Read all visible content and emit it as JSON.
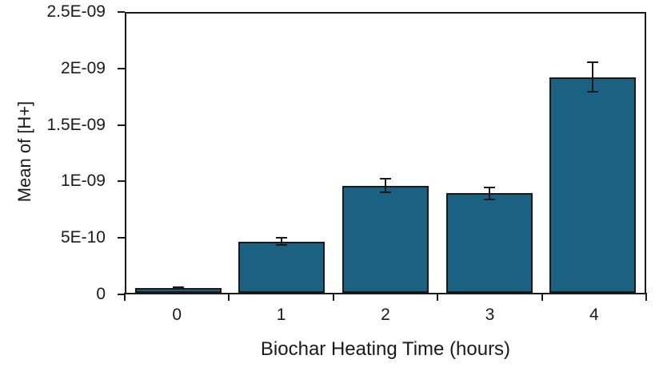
{
  "figure": {
    "background_color": "#ffffff",
    "text_color": "#1a1a1a",
    "axis_color": "#1a1a1a"
  },
  "chart_data": {
    "type": "bar",
    "title": "",
    "xlabel": "Biochar Heating Time (hours)",
    "ylabel": "Mean of [H+]",
    "categories": [
      "0",
      "1",
      "2",
      "3",
      "4"
    ],
    "values": [
      4e-11,
      4.6e-10,
      9.6e-10,
      8.9e-10,
      1.93e-09
    ],
    "errors": [
      1.2e-11,
      4e-11,
      7e-11,
      6e-11,
      1.4e-10
    ],
    "ylim": [
      0,
      2.5e-09
    ],
    "yticks": [
      {
        "value": 0,
        "label": "0"
      },
      {
        "value": 5e-10,
        "label": "5E-10"
      },
      {
        "value": 1e-09,
        "label": "1E-09"
      },
      {
        "value": 1.5e-09,
        "label": "1.5E-09"
      },
      {
        "value": 2e-09,
        "label": "2E-09"
      },
      {
        "value": 2.5e-09,
        "label": "2.5E-09"
      }
    ],
    "bar_color": "#1A6182",
    "bar_border_color": "#1a1a1a",
    "error_bar_color": "#1a1a1a",
    "grid": false,
    "legend": false,
    "plot_border": true
  }
}
